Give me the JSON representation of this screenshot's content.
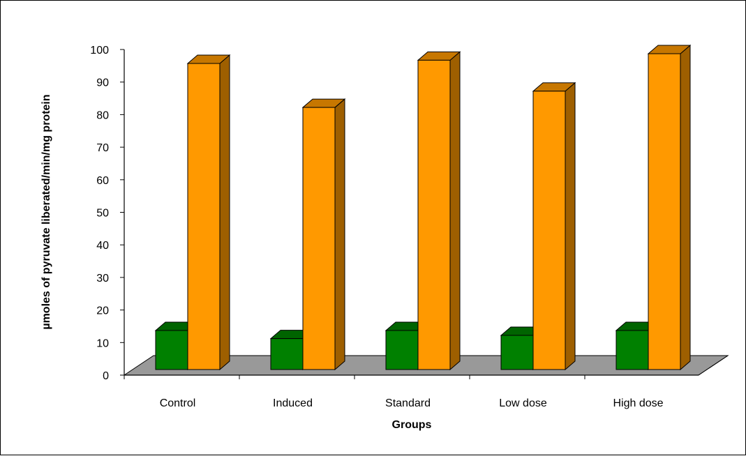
{
  "chart_data": {
    "type": "bar",
    "style": "3d-clustered-column",
    "title": "",
    "xlabel": "Groups",
    "ylabel": "µmoles of pyruvate liberated/min/mg protein",
    "ylim": [
      0,
      100
    ],
    "yticks": [
      0,
      10,
      20,
      30,
      40,
      50,
      60,
      70,
      80,
      90,
      100
    ],
    "categories": [
      "Control",
      "Induced",
      "Standard",
      "Low dose",
      "High dose"
    ],
    "series": [
      {
        "values": [
          12,
          9.5,
          12,
          10.5,
          12
        ],
        "color": "#008000"
      },
      {
        "values": [
          94,
          80.5,
          95,
          85.5,
          97
        ],
        "color": "#ff9900"
      }
    ],
    "floor_color": "#999999",
    "grid": false,
    "legend": "none"
  }
}
